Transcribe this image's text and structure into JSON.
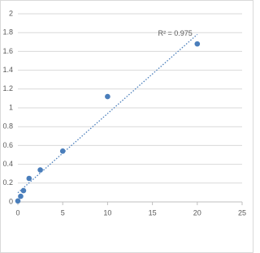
{
  "chart_data": {
    "type": "scatter",
    "x": [
      0,
      0.312,
      0.625,
      1.25,
      2.5,
      5,
      10,
      20
    ],
    "values": [
      0.01,
      0.06,
      0.12,
      0.25,
      0.34,
      0.54,
      1.12,
      1.68
    ],
    "color": "#4a7ebb",
    "trendline": {
      "type": "linear",
      "color": "#4a7ebb",
      "label": "R² = 0.975"
    },
    "xlim": [
      0,
      25
    ],
    "xticks": [
      0,
      5,
      10,
      15,
      20,
      25
    ],
    "ylim": [
      0,
      2
    ],
    "yticks": [
      0,
      0.2,
      0.4,
      0.6,
      0.8,
      1,
      1.2,
      1.4,
      1.6,
      1.8,
      2
    ],
    "grid": true
  }
}
